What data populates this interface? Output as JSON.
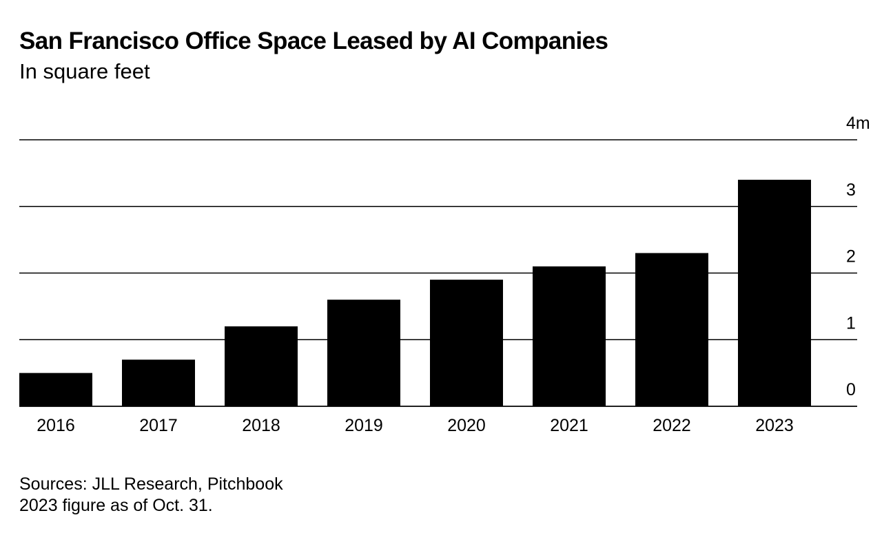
{
  "title": "San Francisco Office Space Leased by AI Companies",
  "subtitle": "In square feet",
  "footer": {
    "sources": "Sources: JLL Research, Pitchbook",
    "note": "2023 figure as of Oct. 31."
  },
  "chart_data": {
    "type": "bar",
    "title": "San Francisco Office Space Leased by AI Companies",
    "subtitle": "In square feet",
    "xlabel": "",
    "ylabel": "",
    "categories": [
      "2016",
      "2017",
      "2018",
      "2019",
      "2020",
      "2021",
      "2022",
      "2023"
    ],
    "values": [
      0.5,
      0.7,
      1.2,
      1.6,
      1.9,
      2.1,
      2.3,
      3.4
    ],
    "value_unit": "million square feet",
    "ylim": [
      0,
      4
    ],
    "yticks": [
      0,
      1,
      2,
      3,
      4
    ],
    "ytick_labels": [
      "0",
      "1",
      "2",
      "3",
      "4m"
    ],
    "y_axis_side": "right",
    "grid": true,
    "bar_color": "#000000",
    "grid_color": "#000000"
  }
}
